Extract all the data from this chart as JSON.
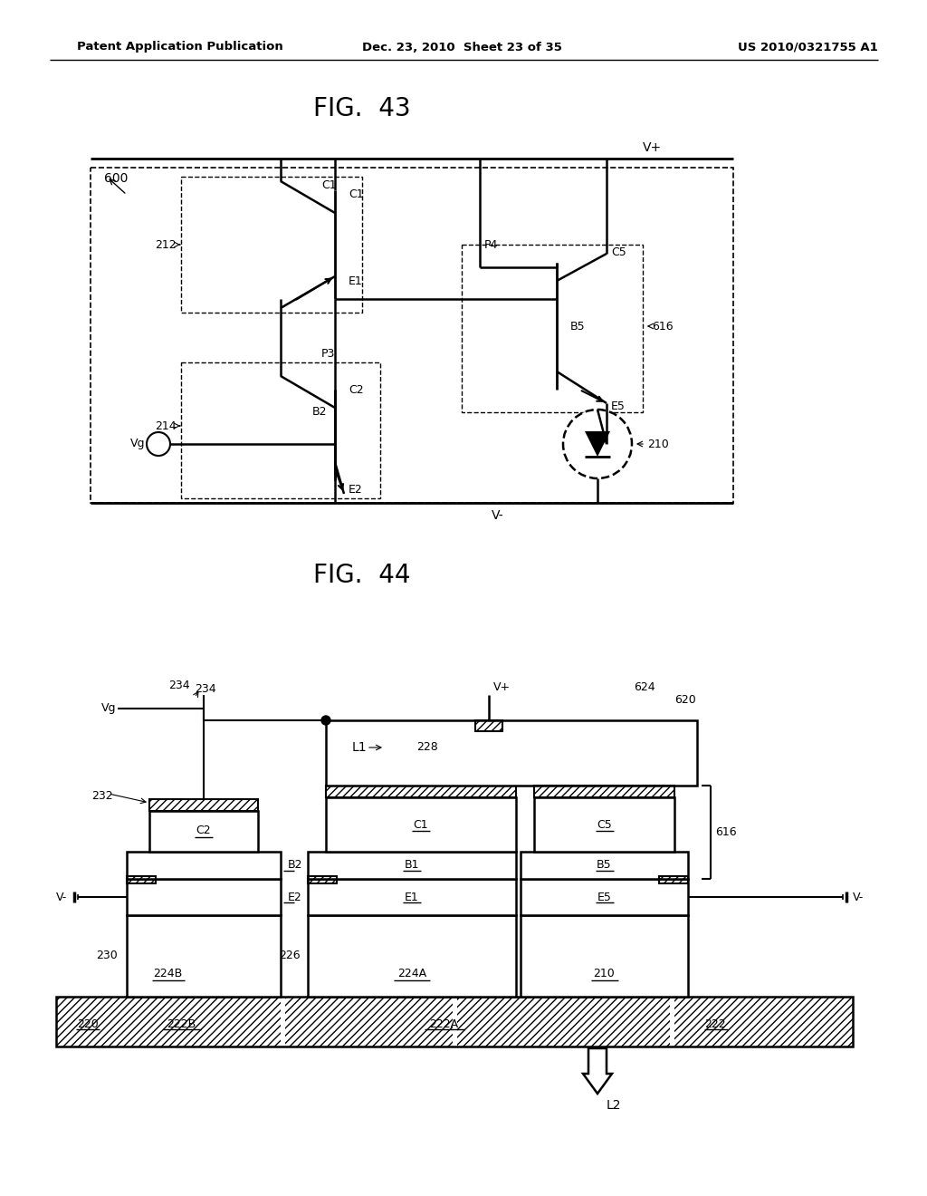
{
  "header_left": "Patent Application Publication",
  "header_mid": "Dec. 23, 2010  Sheet 23 of 35",
  "header_right": "US 2010/0321755 A1",
  "fig43_title": "FIG.  43",
  "fig44_title": "FIG.  44",
  "bg_color": "#ffffff"
}
